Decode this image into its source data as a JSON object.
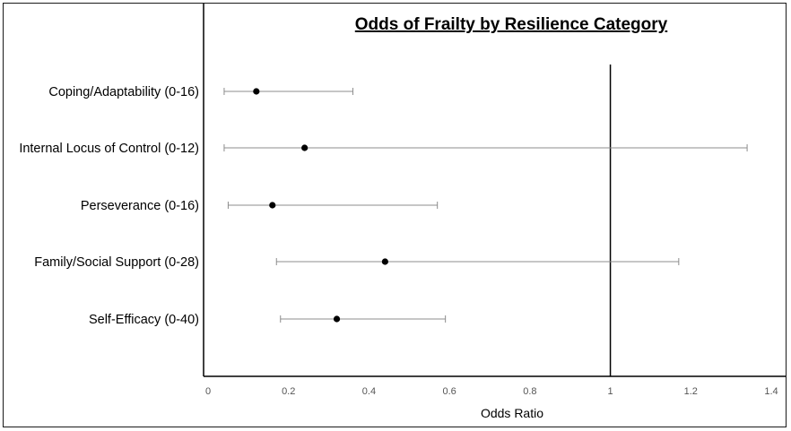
{
  "chart_data": {
    "type": "forest",
    "title": "Odds of Frailty by Resilience Category",
    "xlabel": "Odds Ratio",
    "ylabel": "",
    "xlim": [
      0,
      1.4
    ],
    "xticks": [
      0,
      0.2,
      0.4,
      0.6,
      0.8,
      1,
      1.2,
      1.4
    ],
    "xtick_labels": [
      "0",
      "0.2",
      "0.4",
      "0.6",
      "0.8",
      "1",
      "1.2",
      "1.4"
    ],
    "reference_line": 1,
    "grid": false,
    "legend": "none",
    "categories": [
      "Coping/Adaptability (0-16)",
      "Internal Locus of Control (0-12)",
      "Perseverance (0-16)",
      "Family/Social Support (0-28)",
      "Self-Efficacy (0-40)"
    ],
    "estimates": [
      0.12,
      0.24,
      0.16,
      0.44,
      0.32
    ],
    "lower": [
      0.04,
      0.04,
      0.05,
      0.17,
      0.18
    ],
    "upper": [
      0.36,
      1.34,
      0.57,
      1.17,
      0.59
    ],
    "colors": {
      "point": "#000000",
      "errorbar": "#8c8c8c",
      "reference": "#000000",
      "axis": "#000000"
    }
  }
}
